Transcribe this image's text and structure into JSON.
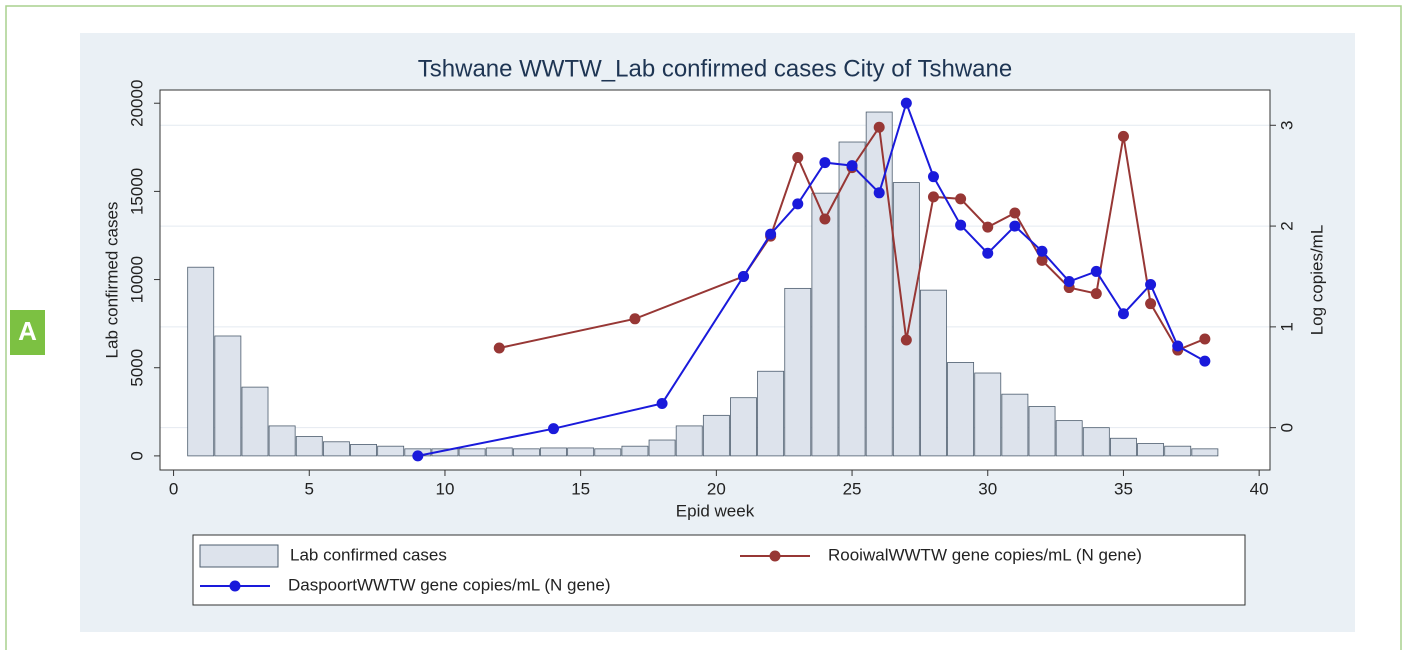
{
  "panel_label": "A",
  "chart_data": {
    "type": "combo",
    "title": "Tshwane WWTW_Lab confirmed cases City of Tshwane",
    "xlabel": "Epid week",
    "ylabel": "Lab  confirmed cases",
    "y2label": "Log copies/mL",
    "xlim": [
      -0.5,
      40.4
    ],
    "xticks": [
      0,
      5,
      10,
      15,
      20,
      25,
      30,
      35,
      40
    ],
    "ylim": [
      -800,
      20750
    ],
    "yticks": [
      0,
      5000,
      10000,
      15000,
      20000
    ],
    "y2lim": [
      -0.42,
      3.35
    ],
    "y2ticks": [
      0,
      1,
      2,
      3
    ],
    "grid": "y2",
    "series": [
      {
        "name": "Lab  confirmed cases",
        "type": "bar",
        "color": "#dde3ec",
        "x": [
          1,
          2,
          3,
          4,
          5,
          6,
          7,
          8,
          9,
          10,
          11,
          12,
          13,
          14,
          15,
          16,
          17,
          18,
          19,
          20,
          21,
          22,
          23,
          24,
          25,
          26,
          27,
          28,
          29,
          30,
          31,
          32,
          33,
          34,
          35,
          36,
          37,
          38
        ],
        "values": [
          10700,
          6800,
          3900,
          1700,
          1100,
          800,
          650,
          550,
          400,
          400,
          400,
          450,
          400,
          450,
          450,
          400,
          550,
          900,
          1700,
          2300,
          3300,
          4800,
          9500,
          14900,
          17800,
          19500,
          15500,
          9400,
          5300,
          4700,
          3500,
          2800,
          2000,
          1600,
          1000,
          700,
          550,
          400
        ]
      },
      {
        "name": "RooiwalWWTW gene copies/mL (N gene)",
        "type": "line",
        "axis": "y2",
        "color": "#973735",
        "x": [
          12,
          17,
          21,
          22,
          23,
          24,
          25,
          26,
          27,
          28,
          29,
          30,
          31,
          32,
          33,
          34,
          35,
          36,
          37,
          38
        ],
        "values": [
          0.79,
          1.08,
          1.5,
          1.9,
          2.68,
          2.07,
          2.58,
          2.98,
          0.87,
          2.29,
          2.27,
          1.99,
          2.13,
          1.66,
          1.39,
          1.33,
          2.89,
          1.23,
          0.77,
          0.88
        ]
      },
      {
        "name": "DaspoortWWTW gene copies/mL (N gene)",
        "type": "line",
        "axis": "y2",
        "color": "#1a1adb",
        "x": [
          9,
          14,
          18,
          21,
          22,
          23,
          24,
          25,
          26,
          27,
          28,
          29,
          30,
          31,
          32,
          33,
          34,
          35,
          36,
          37,
          38
        ],
        "values": [
          -0.28,
          -0.01,
          0.24,
          1.5,
          1.92,
          2.22,
          2.63,
          2.6,
          2.33,
          3.22,
          2.49,
          2.01,
          1.73,
          2.0,
          1.75,
          1.45,
          1.55,
          1.13,
          1.42,
          0.81,
          0.66
        ]
      }
    ]
  }
}
